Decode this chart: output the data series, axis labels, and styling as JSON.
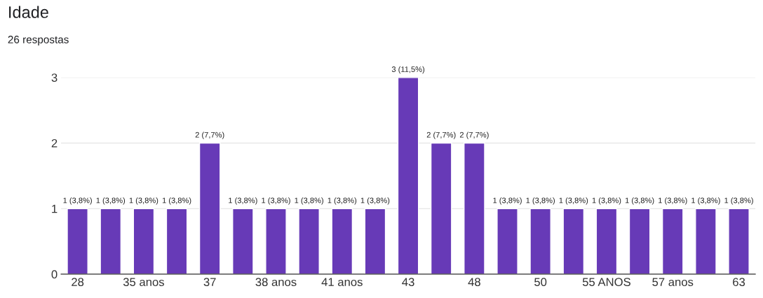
{
  "chart_data": {
    "type": "bar",
    "title": "Idade",
    "subtitle": "26 respostas",
    "categories": [
      "28",
      null,
      "35 anos",
      null,
      "37",
      null,
      "38 anos",
      null,
      "41 anos",
      null,
      "43",
      null,
      "48",
      null,
      "50",
      null,
      "55 ANOS",
      null,
      "57 anos",
      null,
      "63"
    ],
    "values": [
      1,
      1,
      1,
      1,
      2,
      1,
      1,
      1,
      1,
      1,
      3,
      2,
      2,
      1,
      1,
      1,
      1,
      1,
      1,
      1,
      1
    ],
    "value_labels": [
      "1 (3,8%)",
      "1 (3,8%)",
      "1 (3,8%)",
      "1 (3,8%)",
      "2 (7,7%)",
      "1 (3,8%)",
      "1 (3,8%)",
      "1 (3,8%)",
      "1 (3,8%)",
      "1 (3,8%)",
      "3 (11,5%)",
      "2 (7,7%)",
      "2 (7,7%)",
      "1 (3,8%)",
      "1 (3,8%)",
      "1 (3,8%)",
      "1 (3,8%)",
      "1 (3,8%)",
      "1 (3,8%)",
      "1 (3,8%)",
      "1 (3,8%)"
    ],
    "color": "#673ab7",
    "ylim": [
      0,
      3
    ],
    "yticks": [
      0,
      1,
      2,
      3
    ],
    "grid": "y"
  }
}
